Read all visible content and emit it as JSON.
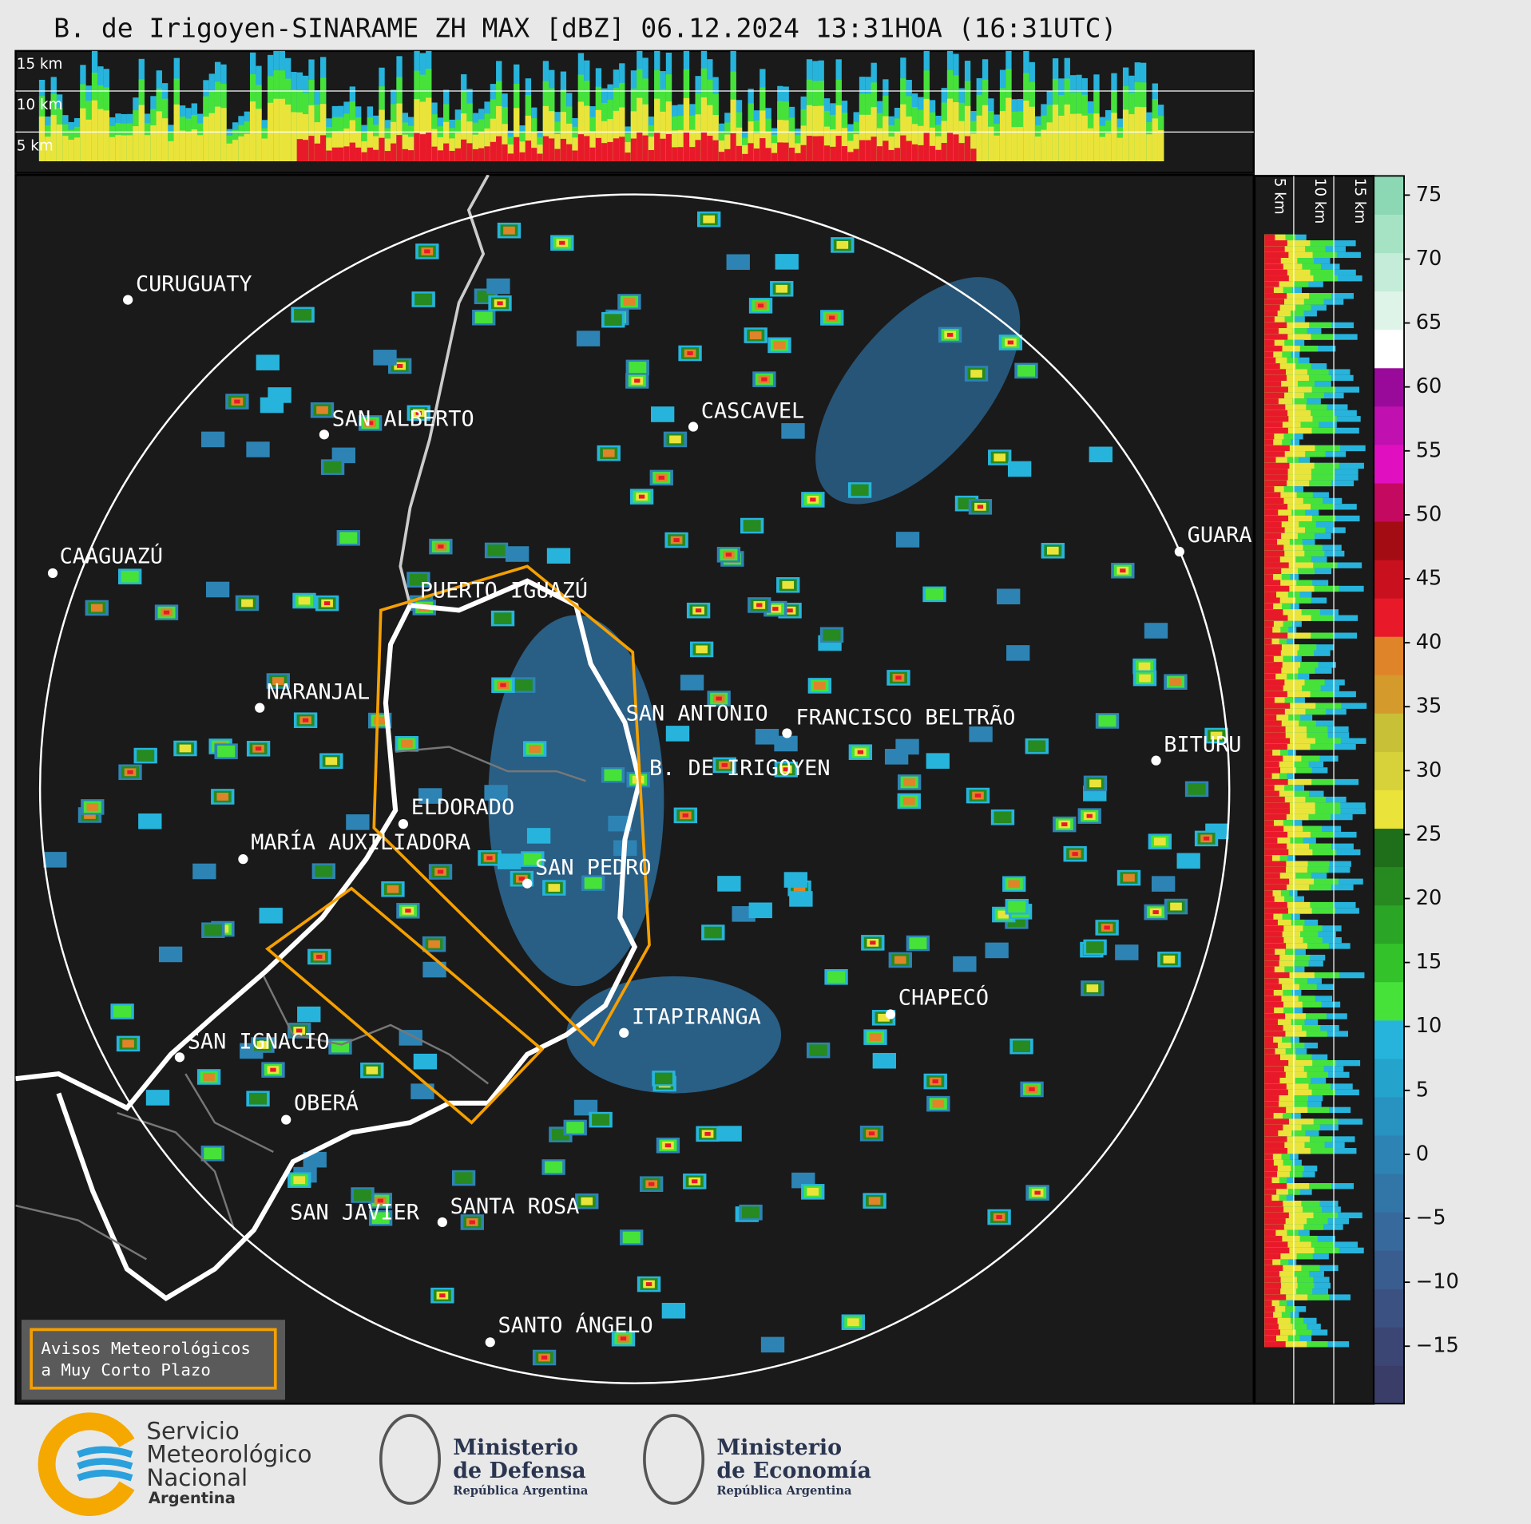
{
  "title": "B. de Irigoyen-SINARAME ZH MAX [dBZ] 06.12.2024 13:31HOA (16:31UTC)",
  "cities": [
    "CURUGUATY",
    "SAN ALBERTO",
    "CASCAVEL",
    "CAAGUAZÚ",
    "GUARA",
    "PUERTO IGUAZÚ",
    "NARANJAL",
    "SAN ANTONIO",
    "FRANCISCO BELTRÃO",
    "BITURU",
    "B. DE IRIGOYEN",
    "ELDORADO",
    "MARÍA AUXILIADORA",
    "SAN PEDRO",
    "CHAPECÓ",
    "ITAPIRANGA",
    "SAN IGNACIO",
    "OBERÁ",
    "SAN JAVIER",
    "SANTA ROSA",
    "SANTO ÁNGELO"
  ],
  "top_panel": {
    "height_labels": [
      "15 km",
      "10 km",
      "5 km"
    ]
  },
  "side_panel": {
    "height_labels": [
      "5 km",
      "10 km",
      "15 km"
    ]
  },
  "colorbar": {
    "ylim": [
      -19.5,
      76.5
    ],
    "ticks": [
      75,
      70,
      65,
      60,
      55,
      50,
      45,
      40,
      35,
      30,
      25,
      20,
      15,
      10,
      5,
      0,
      {
        "value": -5,
        "label": "−5"
      },
      {
        "value": -10,
        "label": "−10"
      },
      {
        "value": -15,
        "label": "−15"
      }
    ],
    "colors": [
      "#3a3d68",
      "#3b4675",
      "#3b5182",
      "#3a5d8f",
      "#37699c",
      "#3276a8",
      "#2d84b4",
      "#2892c0",
      "#24a3cc",
      "#27b4dc",
      "#46e23a",
      "#33c22a",
      "#2aa525",
      "#268a20",
      "#1f6e1a",
      "#eae43a",
      "#d8d23a",
      "#c8c036",
      "#d49a2c",
      "#e0842a",
      "#e81a2a",
      "#c8101e",
      "#a40c14",
      "#c40a60",
      "#e010c0",
      "#c010b0",
      "#9a0a9a",
      "#ffffff",
      "#dff4e8",
      "#c4ecd8",
      "#a6e2c4",
      "#8cd8b4"
    ]
  },
  "warning_box": {
    "lines": [
      "Avisos Meteorológicos",
      "a Muy Corto Plazo"
    ]
  },
  "logos": {
    "smn": [
      "Servicio",
      "Meteorológico",
      "Nacional",
      "Argentina"
    ],
    "defensa": [
      "Ministerio",
      "de Defensa",
      "República Argentina"
    ],
    "economia": [
      "Ministerio",
      "de Economía",
      "República Argentina"
    ]
  }
}
